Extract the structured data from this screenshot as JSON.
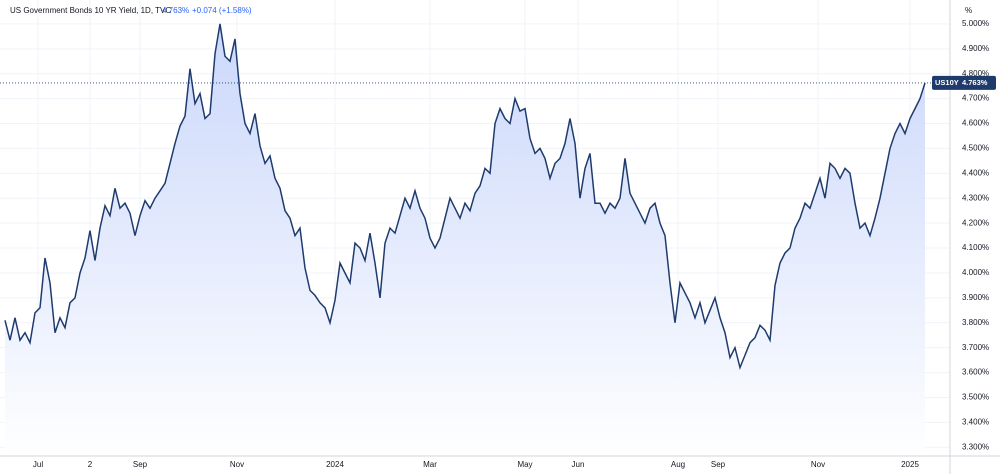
{
  "chart_data": {
    "type": "line",
    "title": "US Government Bonds 10 YR Yield, 1D, TVC",
    "price": "4.763%",
    "change": "+0.074 (+1.58%)",
    "y_unit": "%",
    "symbol": "US10Y",
    "color": "#1f3b6e",
    "fill_color": "#c6d4fb",
    "grid": true,
    "values": [
      3.81,
      3.73,
      3.82,
      3.73,
      3.76,
      3.72,
      3.84,
      3.86,
      4.06,
      3.96,
      3.76,
      3.82,
      3.78,
      3.88,
      3.9,
      4.0,
      4.06,
      4.17,
      4.05,
      4.18,
      4.27,
      4.23,
      4.34,
      4.26,
      4.28,
      4.24,
      4.15,
      4.23,
      4.29,
      4.26,
      4.3,
      4.33,
      4.36,
      4.44,
      4.52,
      4.59,
      4.63,
      4.82,
      4.68,
      4.72,
      4.62,
      4.64,
      4.88,
      5.0,
      4.87,
      4.85,
      4.94,
      4.72,
      4.6,
      4.56,
      4.64,
      4.51,
      4.44,
      4.47,
      4.38,
      4.34,
      4.25,
      4.22,
      4.15,
      4.18,
      4.02,
      3.93,
      3.91,
      3.88,
      3.86,
      3.8,
      3.89,
      4.04,
      4.0,
      3.96,
      4.12,
      4.1,
      4.05,
      4.16,
      4.04,
      3.9,
      4.12,
      4.18,
      4.16,
      4.23,
      4.3,
      4.26,
      4.33,
      4.26,
      4.22,
      4.14,
      4.1,
      4.14,
      4.22,
      4.3,
      4.26,
      4.22,
      4.28,
      4.25,
      4.32,
      4.35,
      4.42,
      4.4,
      4.6,
      4.66,
      4.62,
      4.6,
      4.7,
      4.65,
      4.66,
      4.54,
      4.48,
      4.5,
      4.46,
      4.38,
      4.44,
      4.46,
      4.52,
      4.62,
      4.52,
      4.3,
      4.42,
      4.48,
      4.28,
      4.28,
      4.24,
      4.28,
      4.26,
      4.3,
      4.46,
      4.32,
      4.28,
      4.24,
      4.2,
      4.26,
      4.28,
      4.2,
      4.15,
      3.96,
      3.8,
      3.96,
      3.92,
      3.88,
      3.82,
      3.88,
      3.8,
      3.85,
      3.9,
      3.82,
      3.76,
      3.66,
      3.7,
      3.62,
      3.67,
      3.72,
      3.74,
      3.79,
      3.77,
      3.73,
      3.95,
      4.04,
      4.08,
      4.1,
      4.18,
      4.22,
      4.28,
      4.26,
      4.32,
      4.38,
      4.3,
      4.44,
      4.42,
      4.38,
      4.42,
      4.4,
      4.28,
      4.18,
      4.2,
      4.15,
      4.22,
      4.3,
      4.4,
      4.5,
      4.56,
      4.6,
      4.56,
      4.62,
      4.66,
      4.7,
      4.763
    ],
    "xlim": [
      -1,
      189
    ],
    "xticks": [
      {
        "value": 6.6,
        "label": "Jul"
      },
      {
        "value": 17,
        "label": "2"
      },
      {
        "value": 27,
        "label": "Sep"
      },
      {
        "value": 46.4,
        "label": "Nov"
      },
      {
        "value": 66,
        "label": "2024"
      },
      {
        "value": 85,
        "label": "Mar"
      },
      {
        "value": 104,
        "label": "May"
      },
      {
        "value": 114.6,
        "label": "Jun"
      },
      {
        "value": 134.6,
        "label": "Aug"
      },
      {
        "value": 142.6,
        "label": "Sep"
      },
      {
        "value": 162.6,
        "label": "Nov"
      },
      {
        "value": 181,
        "label": "2025"
      }
    ],
    "ylim": [
      3.265,
      5.096
    ],
    "yticks": [
      {
        "value": 3.3,
        "label": "3.300%"
      },
      {
        "value": 3.4,
        "label": "3.400%"
      },
      {
        "value": 3.5,
        "label": "3.500%"
      },
      {
        "value": 3.6,
        "label": "3.600%"
      },
      {
        "value": 3.7,
        "label": "3.700%"
      },
      {
        "value": 3.8,
        "label": "3.800%"
      },
      {
        "value": 3.9,
        "label": "3.900%"
      },
      {
        "value": 4.0,
        "label": "4.000%"
      },
      {
        "value": 4.1,
        "label": "4.100%"
      },
      {
        "value": 4.2,
        "label": "4.200%"
      },
      {
        "value": 4.3,
        "label": "4.300%"
      },
      {
        "value": 4.4,
        "label": "4.400%"
      },
      {
        "value": 4.5,
        "label": "4.500%"
      },
      {
        "value": 4.6,
        "label": "4.600%"
      },
      {
        "value": 4.7,
        "label": "4.700%"
      },
      {
        "value": 4.8,
        "label": "4.800%"
      },
      {
        "value": 4.9,
        "label": "4.900%"
      },
      {
        "value": 5.0,
        "label": "5.000%"
      }
    ]
  }
}
